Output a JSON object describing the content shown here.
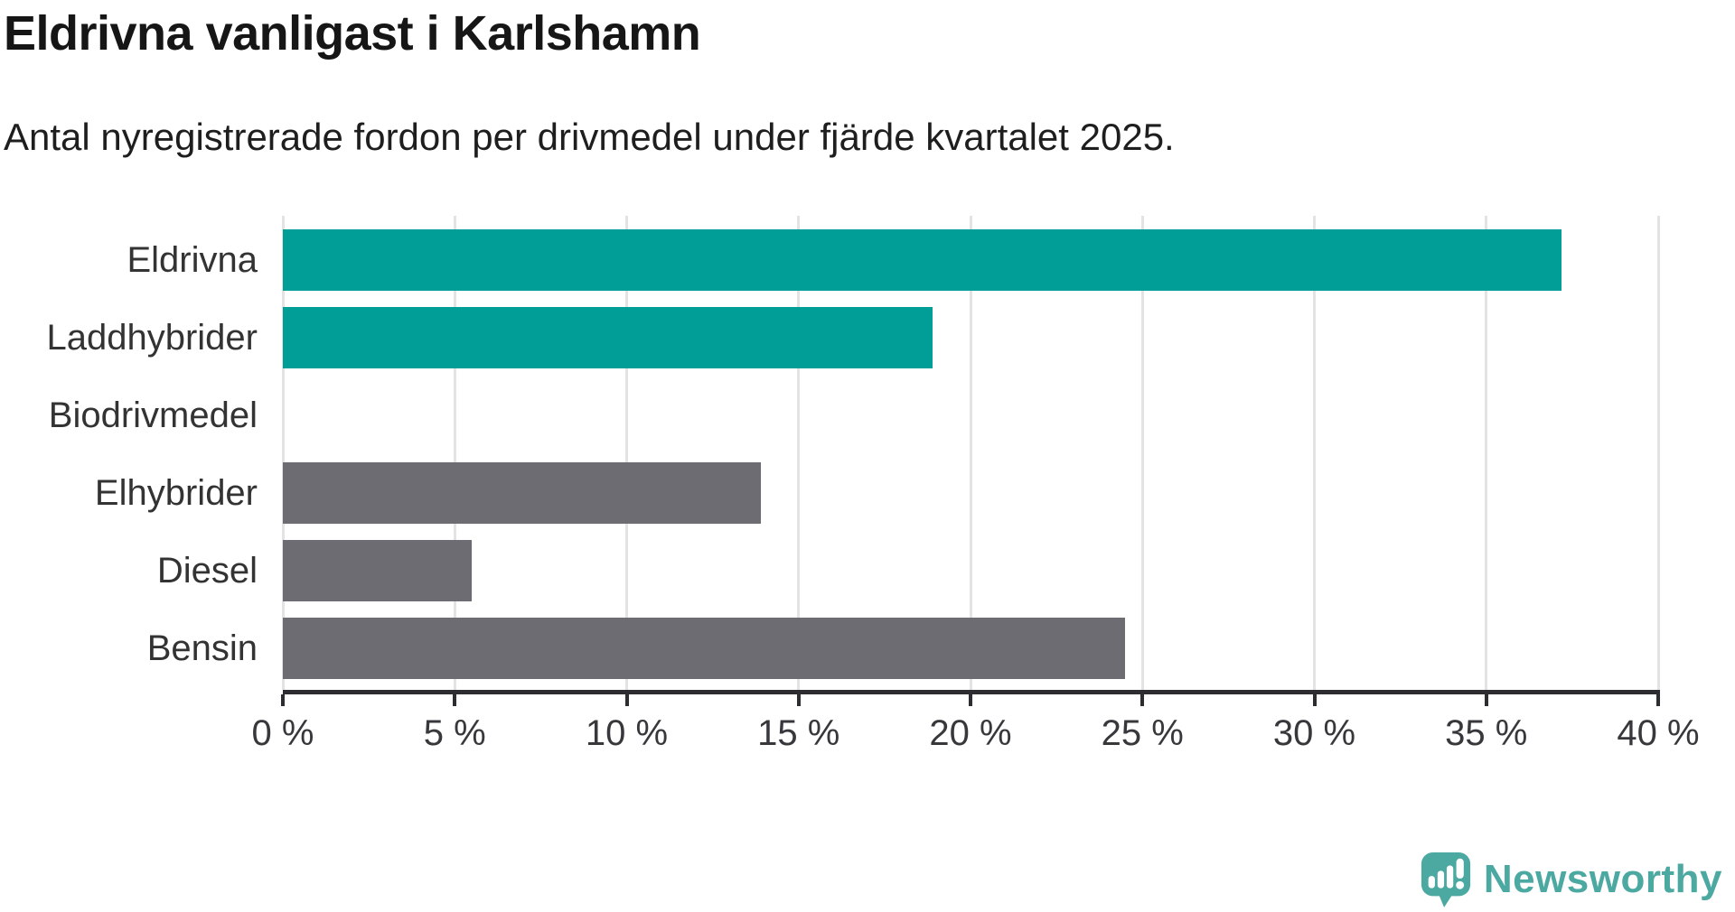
{
  "header": {
    "title": "Eldrivna vanligast i Karlshamn",
    "subtitle": "Antal nyregistrerade fordon per drivmedel under fjärde kvartalet 2025."
  },
  "chart_data": {
    "type": "bar",
    "orientation": "horizontal",
    "title": "Eldrivna vanligast i Karlshamn",
    "subtitle": "Antal nyregistrerade fordon per drivmedel under fjärde kvartalet 2025.",
    "categories": [
      "Eldrivna",
      "Laddhybrider",
      "Biodrivmedel",
      "Elhybrider",
      "Diesel",
      "Bensin"
    ],
    "values": [
      37.2,
      18.9,
      0,
      13.9,
      5.5,
      24.5
    ],
    "unit": "%",
    "bar_colors": [
      "#009E96",
      "#009E96",
      "#6D6C72",
      "#6D6C72",
      "#6D6C72",
      "#6D6C72"
    ],
    "highlight_color": "#009E96",
    "default_color": "#6D6C72",
    "xlim": [
      0,
      40
    ],
    "x_tick_step": 5,
    "x_tick_labels": [
      "0 %",
      "5 %",
      "10 %",
      "15 %",
      "20 %",
      "25 %",
      "30 %",
      "35 %",
      "40 %"
    ],
    "grid": "vertical-only",
    "legend": "none"
  },
  "branding": {
    "logo_text": "Newsworthy",
    "logo_icon": "newsworthy-speech-bubble-bar-chart-icon",
    "logo_color": "#4CA9A2"
  },
  "colors": {
    "background": "#FFFFFF",
    "title": "#161616",
    "subtitle": "#1E1E1E",
    "category_label": "#333333",
    "tick_label": "#38383C",
    "gridline": "#E3E3E3",
    "axis_line": "#2D2D31"
  }
}
